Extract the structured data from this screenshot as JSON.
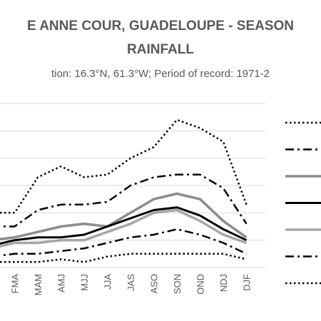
{
  "chart_data": {
    "type": "line",
    "title": [
      "E ANNE COUR, GUADELOUPE - SEASON",
      "RAINFALL"
    ],
    "subtitle": "tion: 16.3°N, 61.3°W; Period of record: 1971-2",
    "xlabel": "",
    "ylabel": "",
    "categories": [
      "FMA",
      "MAM",
      "AMJ",
      "MJJ",
      "JJA",
      "JAS",
      "ASO",
      "SON",
      "OND",
      "NDJ",
      "DJF"
    ],
    "x_leading_partial": true,
    "ylim": [
      0,
      6
    ],
    "grid": true,
    "legend_position": "right",
    "series": [
      {
        "style": "dotted",
        "color": "#000000",
        "width": 2.5,
        "lead": 2.0,
        "values": [
          2.0,
          3.3,
          3.7,
          3.3,
          3.4,
          4.0,
          4.4,
          5.4,
          5.1,
          4.6,
          2.3
        ]
      },
      {
        "style": "dashdot",
        "color": "#000000",
        "width": 2.5,
        "lead": 1.5,
        "values": [
          1.5,
          2.1,
          2.3,
          2.3,
          2.4,
          3.0,
          3.3,
          3.4,
          3.4,
          2.9,
          1.6
        ]
      },
      {
        "style": "solid",
        "color": "#8c8c8c",
        "width": 3.5,
        "lead": 1.0,
        "values": [
          1.1,
          1.3,
          1.5,
          1.6,
          1.5,
          2.0,
          2.5,
          2.7,
          2.5,
          1.7,
          1.1
        ]
      },
      {
        "style": "solid",
        "color": "#000000",
        "width": 3,
        "lead": 0.8,
        "values": [
          1.0,
          1.1,
          1.1,
          1.2,
          1.5,
          1.8,
          2.1,
          2.2,
          1.9,
          1.4,
          1.0
        ]
      },
      {
        "style": "solid",
        "color": "#a6a6a6",
        "width": 3.5,
        "lead": 0.7,
        "values": [
          0.9,
          0.9,
          1.0,
          1.0,
          1.3,
          1.6,
          2.0,
          2.1,
          1.7,
          1.2,
          0.9
        ]
      },
      {
        "style": "dashdot",
        "color": "#000000",
        "width": 2.5,
        "lead": 0.4,
        "values": [
          0.5,
          0.5,
          0.6,
          0.7,
          0.9,
          1.1,
          1.2,
          1.4,
          1.2,
          0.9,
          0.5
        ]
      },
      {
        "style": "dotted",
        "color": "#000000",
        "width": 2.5,
        "lead": 0.2,
        "values": [
          0.2,
          0.2,
          0.3,
          0.2,
          0.4,
          0.5,
          0.5,
          0.5,
          0.5,
          0.5,
          0.3
        ]
      }
    ]
  }
}
